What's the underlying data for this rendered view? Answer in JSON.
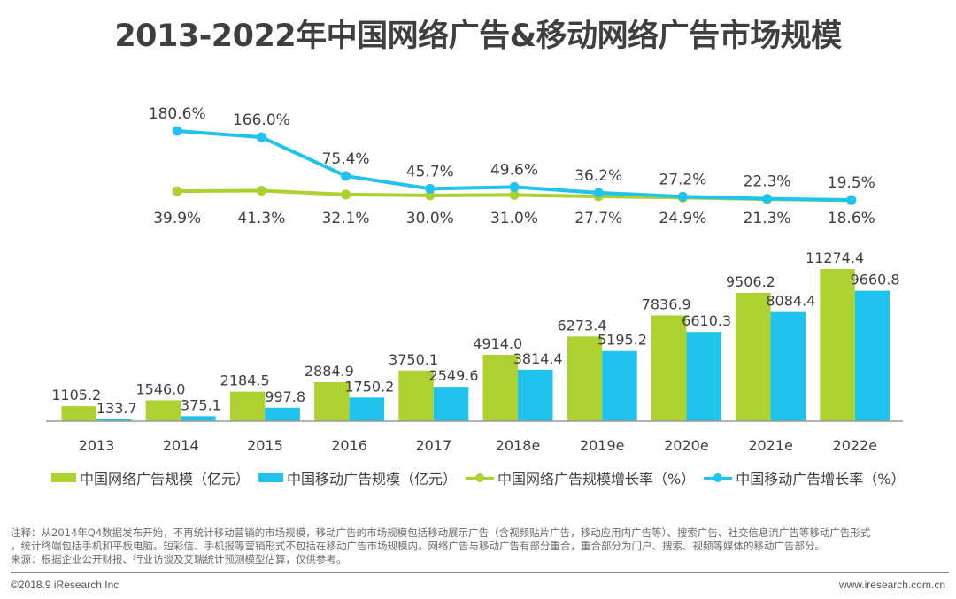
{
  "title": "2013-2022年中国网络广告&移动网络广告市场规模",
  "colors": {
    "green": "#acd131",
    "blue": "#1fc3ee",
    "axis": "#9a9a9a",
    "label": "#404040"
  },
  "chart_data": {
    "type": "bar+line",
    "title": "2013-2022年中国网络广告&移动网络广告市场规模",
    "categories": [
      "2013",
      "2014",
      "2015",
      "2016",
      "2017",
      "2018e",
      "2019e",
      "2020e",
      "2021e",
      "2022e"
    ],
    "bar_series": [
      {
        "name": "中国网络广告规模（亿元）",
        "color": "#acd131",
        "values": [
          1105.2,
          1546.0,
          2184.5,
          2884.9,
          3750.1,
          4914.0,
          6273.4,
          7836.9,
          9506.2,
          11274.4
        ],
        "labels": [
          "1105.2",
          "1546.0",
          "2184.5",
          "2884.9",
          "3750.1",
          "4914.0",
          "6273.4",
          "7836.9",
          "9506.2",
          "11274.4"
        ]
      },
      {
        "name": "中国移动广告规模（亿元）",
        "color": "#1fc3ee",
        "values": [
          133.7,
          375.1,
          997.8,
          1750.2,
          2549.6,
          3814.4,
          5195.2,
          6610.3,
          8084.4,
          9660.8
        ],
        "labels": [
          "133.7",
          "375.1",
          "997.8",
          "1750.2",
          "2549.6",
          "3814.4",
          "5195.2",
          "6610.3",
          "8084.4",
          "9660.8"
        ]
      }
    ],
    "line_categories": [
      "2014",
      "2015",
      "2016",
      "2017",
      "2018e",
      "2019e",
      "2020e",
      "2021e",
      "2022e"
    ],
    "line_series": [
      {
        "name": "中国网络广告规模增长率（%）",
        "color": "#acd131",
        "values": [
          39.9,
          41.3,
          32.1,
          30.0,
          31.0,
          27.7,
          24.9,
          21.3,
          18.6
        ],
        "labels": [
          "39.9%",
          "41.3%",
          "32.1%",
          "30.0%",
          "31.0%",
          "27.7%",
          "24.9%",
          "21.3%",
          "18.6%"
        ],
        "label_position": "below"
      },
      {
        "name": "中国移动广告增长率（%）",
        "color": "#1fc3ee",
        "values": [
          180.6,
          166.0,
          75.4,
          45.7,
          49.6,
          36.2,
          27.2,
          22.3,
          19.5
        ],
        "labels": [
          "180.6%",
          "166.0%",
          "75.4%",
          "45.7%",
          "49.6%",
          "36.2%",
          "27.2%",
          "22.3%",
          "19.5%"
        ],
        "label_position": "above"
      }
    ],
    "bar_ylim": [
      0,
      11274.4
    ],
    "line_ylim": [
      18.6,
      180.6
    ],
    "xlabel": "",
    "ylabel": "",
    "grid": false,
    "legend_position": "bottom"
  },
  "legend": [
    {
      "label": "中国网络广告规模（亿元）",
      "kind": "bar",
      "color": "#acd131"
    },
    {
      "label": "中国移动广告规模（亿元）",
      "kind": "bar",
      "color": "#1fc3ee"
    },
    {
      "label": "中国网络广告规模增长率（%）",
      "kind": "line",
      "color": "#acd131"
    },
    {
      "label": "中国移动广告增长率（%）",
      "kind": "line",
      "color": "#1fc3ee"
    }
  ],
  "notes": {
    "line1": "注释：从2014年Q4数据发布开始，不再统计移动营销的市场规模，移动广告的市场规模包括移动展示广告（含视频贴片广告，移动应用内广告等）、搜索广告、社交信息流广告等移动广告形式",
    "line2": "，统计终端包括手机和平板电脑。短彩信、手机报等营销形式不包括在移动广告市场规模内。网络广告与移动广告有部分重合，重合部分为门户、搜索、视频等媒体的移动广告部分。",
    "line3": "来源：根据企业公开财报、行业访谈及艾瑞统计预测模型估算，仅供参考。"
  },
  "footer": {
    "copyright": "©2018.9 iResearch Inc",
    "website": "www.iresearch.com.cn"
  }
}
